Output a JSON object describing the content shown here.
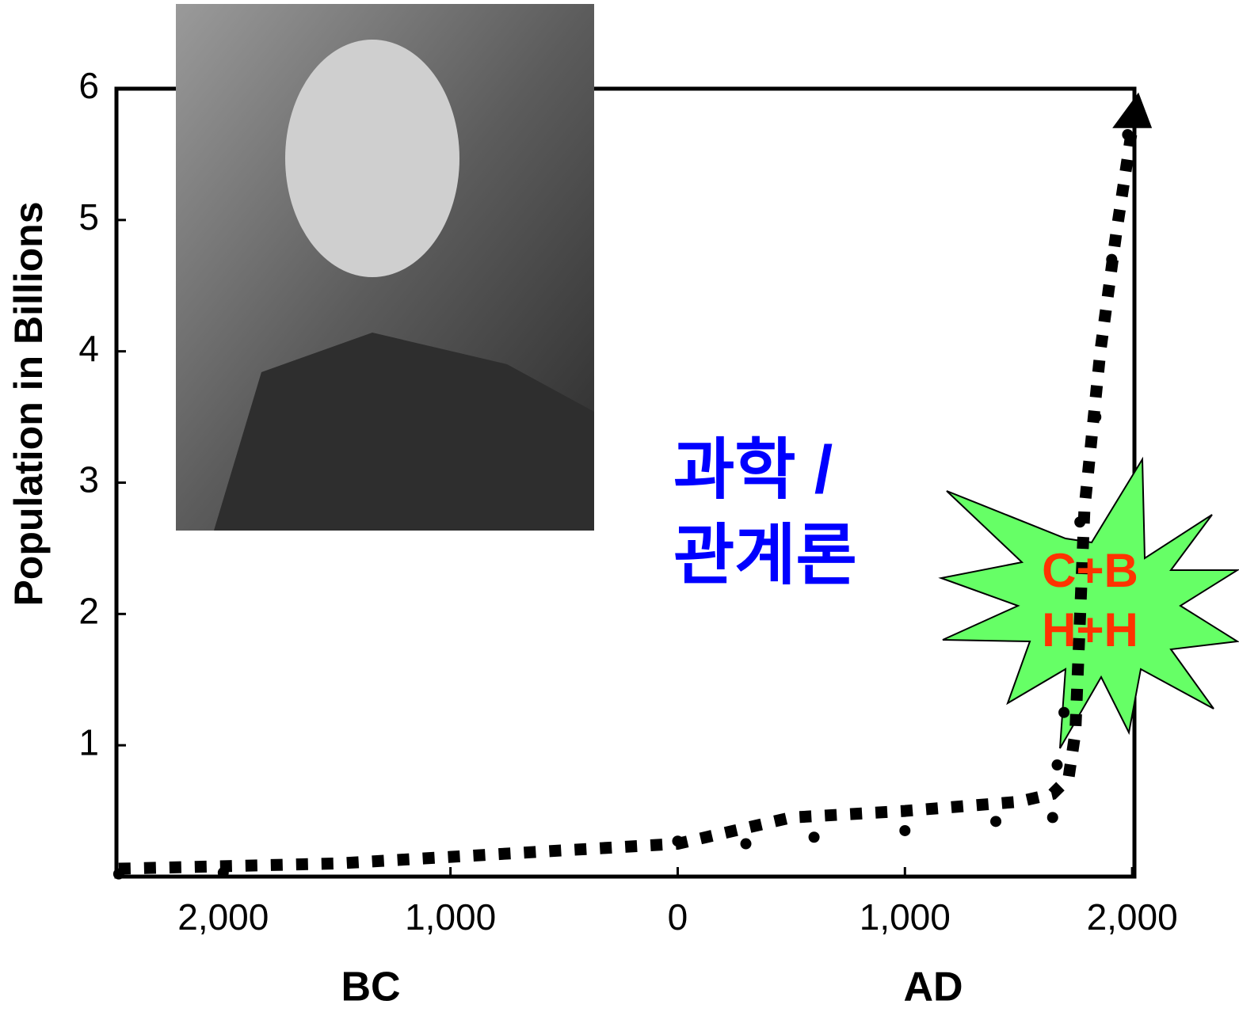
{
  "chart_data": {
    "type": "line",
    "y_label": "Population in Billions",
    "x_label_left": "BC",
    "x_label_right": "AD",
    "annotation": "과학 /\n관계론",
    "badge": "C+B\nH+H",
    "xlim": [
      -2470,
      2010
    ],
    "xticks": [
      {
        "value": -2000,
        "label": "2,000"
      },
      {
        "value": -1000,
        "label": "1,000"
      },
      0,
      {
        "value": 1000,
        "label": "1,000"
      },
      {
        "value": 2000,
        "label": "2,000"
      }
    ],
    "ylim": [
      0,
      6
    ],
    "yticks": [
      1,
      2,
      3,
      4,
      5,
      6
    ],
    "series": [
      {
        "style": "dashed",
        "color": "#000000",
        "x": [
          -2460,
          -1500,
          -1000,
          -500,
          0,
          250,
          500,
          1000,
          1500,
          1650,
          1720,
          1750,
          1790,
          1860,
          1930,
          2000
        ],
        "values": [
          0.06,
          0.1,
          0.15,
          0.2,
          0.25,
          0.35,
          0.45,
          0.5,
          0.57,
          0.63,
          0.75,
          1.1,
          2.8,
          4.0,
          4.9,
          5.7
        ]
      },
      {
        "style": "dotted",
        "color": "#000000",
        "x": [
          -2460,
          -2000,
          0,
          300,
          600,
          1000,
          1400,
          1650,
          1670,
          1700,
          1770,
          1840,
          1910,
          1980
        ],
        "values": [
          0.02,
          0.03,
          0.27,
          0.25,
          0.3,
          0.35,
          0.42,
          0.45,
          0.85,
          1.25,
          2.7,
          3.5,
          4.7,
          5.65
        ]
      }
    ]
  }
}
